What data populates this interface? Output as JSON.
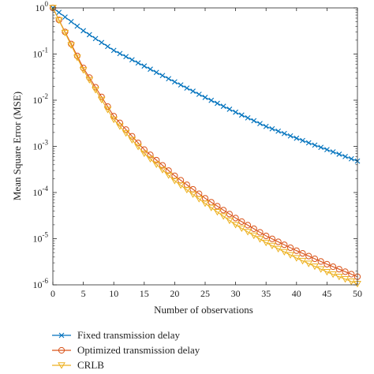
{
  "chart_data": {
    "type": "line",
    "xlabel": "Number of observations",
    "ylabel": "Mean Square Error (MSE)",
    "xlim": [
      0,
      50
    ],
    "ylim": [
      1e-06,
      1
    ],
    "yscale": "log",
    "grid": false,
    "legend_position": "bottom",
    "x_ticks": [
      0,
      5,
      10,
      15,
      20,
      25,
      30,
      35,
      40,
      45,
      50
    ],
    "y_ticks": [
      {
        "value": 1,
        "base": "10",
        "exp": "0"
      },
      {
        "value": 0.1,
        "base": "10",
        "exp": "-1"
      },
      {
        "value": 0.01,
        "base": "10",
        "exp": "-2"
      },
      {
        "value": 0.001,
        "base": "10",
        "exp": "-3"
      },
      {
        "value": 0.0001,
        "base": "10",
        "exp": "-4"
      },
      {
        "value": 1e-05,
        "base": "10",
        "exp": "-5"
      },
      {
        "value": 1e-06,
        "base": "10",
        "exp": "-6"
      }
    ],
    "series": [
      {
        "name": "Fixed transmission delay",
        "color": "#0072BD",
        "marker": "x",
        "x": [
          0,
          5,
          10,
          15,
          20,
          25,
          30,
          35,
          40,
          45,
          50
        ],
        "y": [
          1.0,
          0.32,
          0.12,
          0.055,
          0.025,
          0.0115,
          0.0055,
          0.0027,
          0.0015,
          0.00085,
          0.00048
        ]
      },
      {
        "name": "Optimized transmission delay",
        "color": "#D95319",
        "marker": "o",
        "x": [
          0,
          5,
          10,
          15,
          20,
          25,
          30,
          35,
          40,
          45,
          50
        ],
        "y": [
          1.0,
          0.05,
          0.0045,
          0.00085,
          0.00023,
          7.5e-05,
          2.8e-05,
          1.15e-05,
          5.5e-06,
          2.8e-06,
          1.5e-06
        ]
      },
      {
        "name": "CRLB",
        "color": "#EDB120",
        "marker": "v",
        "x": [
          0,
          5,
          10,
          15,
          20,
          25,
          30,
          35,
          40,
          45,
          50
        ],
        "y": [
          1.0,
          0.045,
          0.0038,
          0.0007,
          0.00018,
          5.8e-05,
          2e-05,
          8.2e-06,
          3.8e-06,
          1.9e-06,
          1.05e-06
        ]
      }
    ]
  }
}
